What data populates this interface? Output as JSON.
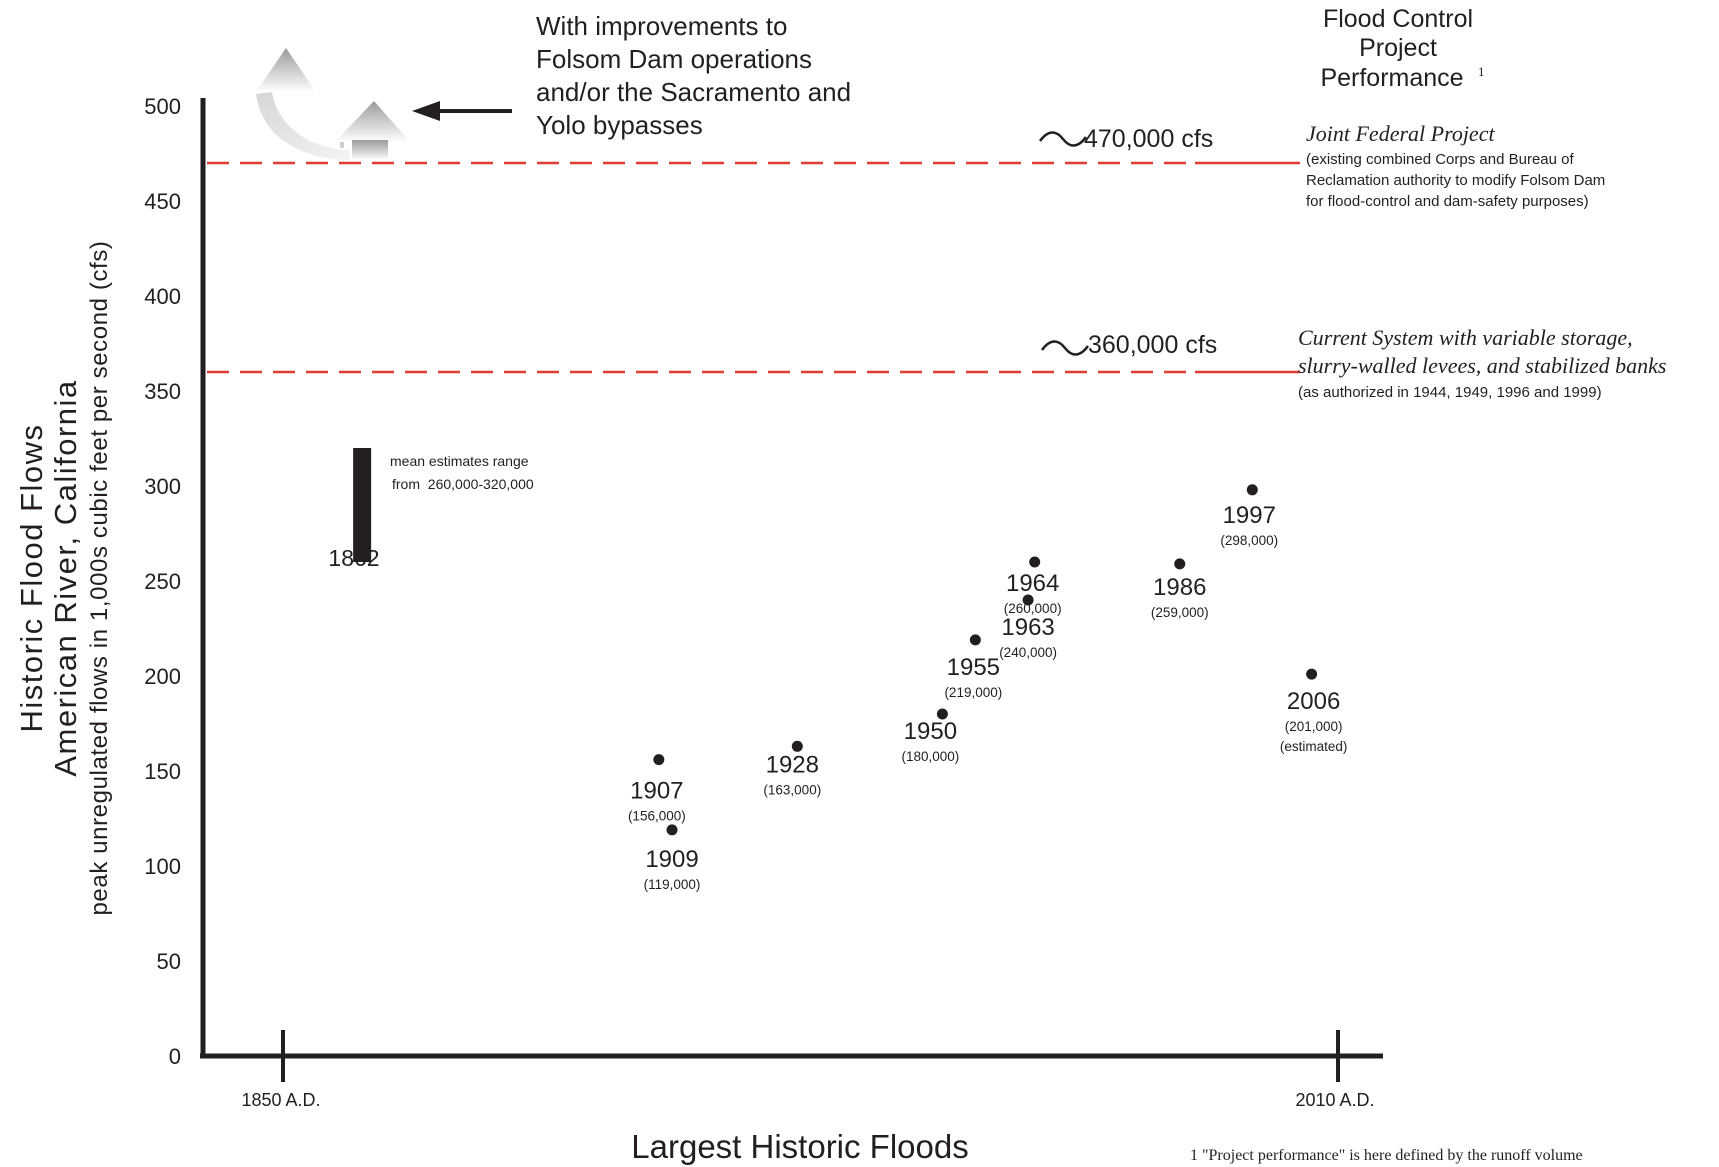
{
  "chart_data": {
    "type": "scatter",
    "title": "Flood Control Project Performance",
    "title_lines": [
      "Flood Control",
      "Project",
      "Performance"
    ],
    "title_footnote_mark": "1",
    "ylabel_lines": [
      "Historic Flood Flows",
      "American River, California",
      "peak unregulated flows in 1,000s cubic feet per second (cfs)"
    ],
    "xlabel": "Largest Historic Floods",
    "x_range_years": [
      1850,
      2010
    ],
    "x_tick_labels": [
      {
        "year": 1850,
        "label": "1850 A.D."
      },
      {
        "year": 2010,
        "label": "2010 A.D."
      }
    ],
    "ylim": [
      0,
      500
    ],
    "y_ticks": [
      "0",
      "50",
      "100",
      "150",
      "200",
      "250",
      "300",
      "350",
      "400",
      "450",
      "500"
    ],
    "grid": false,
    "points": [
      {
        "year": 1907,
        "value": 156,
        "label": "1907",
        "sublabel": "(156,000)"
      },
      {
        "year": 1909,
        "value": 119,
        "label": "1909",
        "sublabel": "(119,000)"
      },
      {
        "year": 1928,
        "value": 163,
        "label": "1928",
        "sublabel": "(163,000)"
      },
      {
        "year": 1950,
        "value": 180,
        "label": "1950",
        "sublabel": "(180,000)"
      },
      {
        "year": 1955,
        "value": 219,
        "label": "1955",
        "sublabel": "(219,000)"
      },
      {
        "year": 1963,
        "value": 240,
        "label": "1963",
        "sublabel": "(240,000)"
      },
      {
        "year": 1964,
        "value": 260,
        "label": "1964",
        "sublabel": "(260,000)"
      },
      {
        "year": 1986,
        "value": 259,
        "label": "1986",
        "sublabel": "(259,000)"
      },
      {
        "year": 1997,
        "value": 298,
        "label": "1997",
        "sublabel": "(298,000)"
      },
      {
        "year": 2006,
        "value": 201,
        "label": "2006",
        "sublabel": "(201,000)",
        "note": "(estimated)"
      }
    ],
    "range_bar": {
      "year": 1862,
      "low": 260,
      "high": 320,
      "label": "1862",
      "note_lines": [
        "mean estimates range",
        "from  260,000-320,000"
      ]
    },
    "reference_lines": [
      {
        "value": 470,
        "color": "#e03c31",
        "label": "470,000 cfs",
        "title": "Joint Federal Project",
        "desc_lines": [
          "(existing combined Corps and Bureau of",
          "Reclamation authority to modify Folsom Dam",
          "for flood-control and dam-safety purposes)"
        ]
      },
      {
        "value": 360,
        "color": "#e03c31",
        "label": "360,000 cfs",
        "title_lines": [
          "Current System with variable storage,",
          "slurry-walled levees, and stabilized banks"
        ],
        "desc_lines": [
          "(as authorized in 1944, 1949, 1996 and 1999)"
        ]
      }
    ],
    "annotation_lines": [
      "With improvements to",
      "Folsom Dam operations",
      "and/or the Sacramento and",
      "Yolo bypasses"
    ],
    "footnote": "1 \"Project performance\" is here defined by the runoff volume",
    "colors": {
      "axis": "#231f20",
      "reference": "#e03c31",
      "point": "#231f20"
    }
  }
}
